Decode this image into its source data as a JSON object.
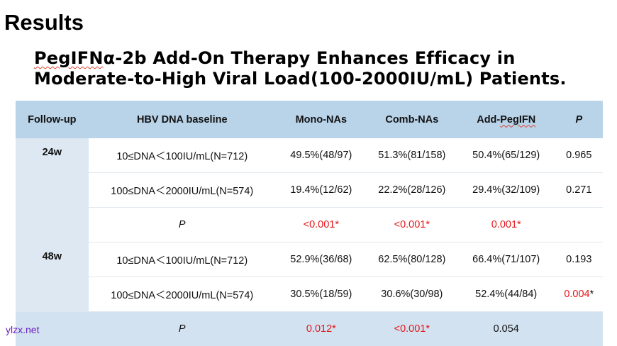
{
  "header": {
    "section": "Results",
    "title_pre": "",
    "title_squig": "PegIFN",
    "title_rest": "α-2b Add-On Therapy Enhances Efficacy in Moderate-to-High Viral Load(100-2000IU/mL) Patients."
  },
  "table": {
    "columns": {
      "followup": "Follow-up",
      "baseline": "HBV DNA baseline",
      "mono": "Mono-NAs",
      "comb": "Comb-NAs",
      "add_pre": "Add-",
      "add_squig": "PegIFN",
      "p": "P"
    },
    "groups": [
      {
        "followup": "24w",
        "rows": [
          {
            "baseline": "10≤DNA＜100IU/mL(N=712)",
            "mono": "49.5%(48/97)",
            "comb": "51.3%(81/158)",
            "add": "50.4%(65/129)",
            "p": "0.965",
            "p_star": ""
          },
          {
            "baseline": "100≤DNA＜2000IU/mL(N=574)",
            "mono": "19.4%(12/62)",
            "comb": "22.2%(28/126)",
            "add": "29.4%(32/109)",
            "p": "0.271",
            "p_star": ""
          }
        ],
        "p_row": {
          "label": "P",
          "mono": "<0.001*",
          "comb": "<0.001*",
          "add": "0.001*"
        }
      },
      {
        "followup": "48w",
        "rows": [
          {
            "baseline": "10≤DNA＜100IU/mL(N=712)",
            "mono": "52.9%(36/68)",
            "comb": "62.5%(80/128)",
            "add": "66.4%(71/107)",
            "p": "0.193",
            "p_star": ""
          },
          {
            "baseline": "100≤DNA＜2000IU/mL(N=574)",
            "mono": "30.5%(18/59)",
            "comb": "30.6%(30/98)",
            "add": "52.4%(44/84)",
            "p": "0.004",
            "p_star": "*"
          }
        ],
        "p_row": {
          "label": "P",
          "mono": "0.012*",
          "comb": "<0.001*",
          "add": "0.054"
        }
      }
    ]
  },
  "watermark": "ylzx.net",
  "colors": {
    "header_bg": "#b9d3e9",
    "followup_bg": "#dde8f3",
    "last_row_bg": "#d3e2f0",
    "significant": "#e4161b",
    "watermark": "#6b1fc2"
  }
}
